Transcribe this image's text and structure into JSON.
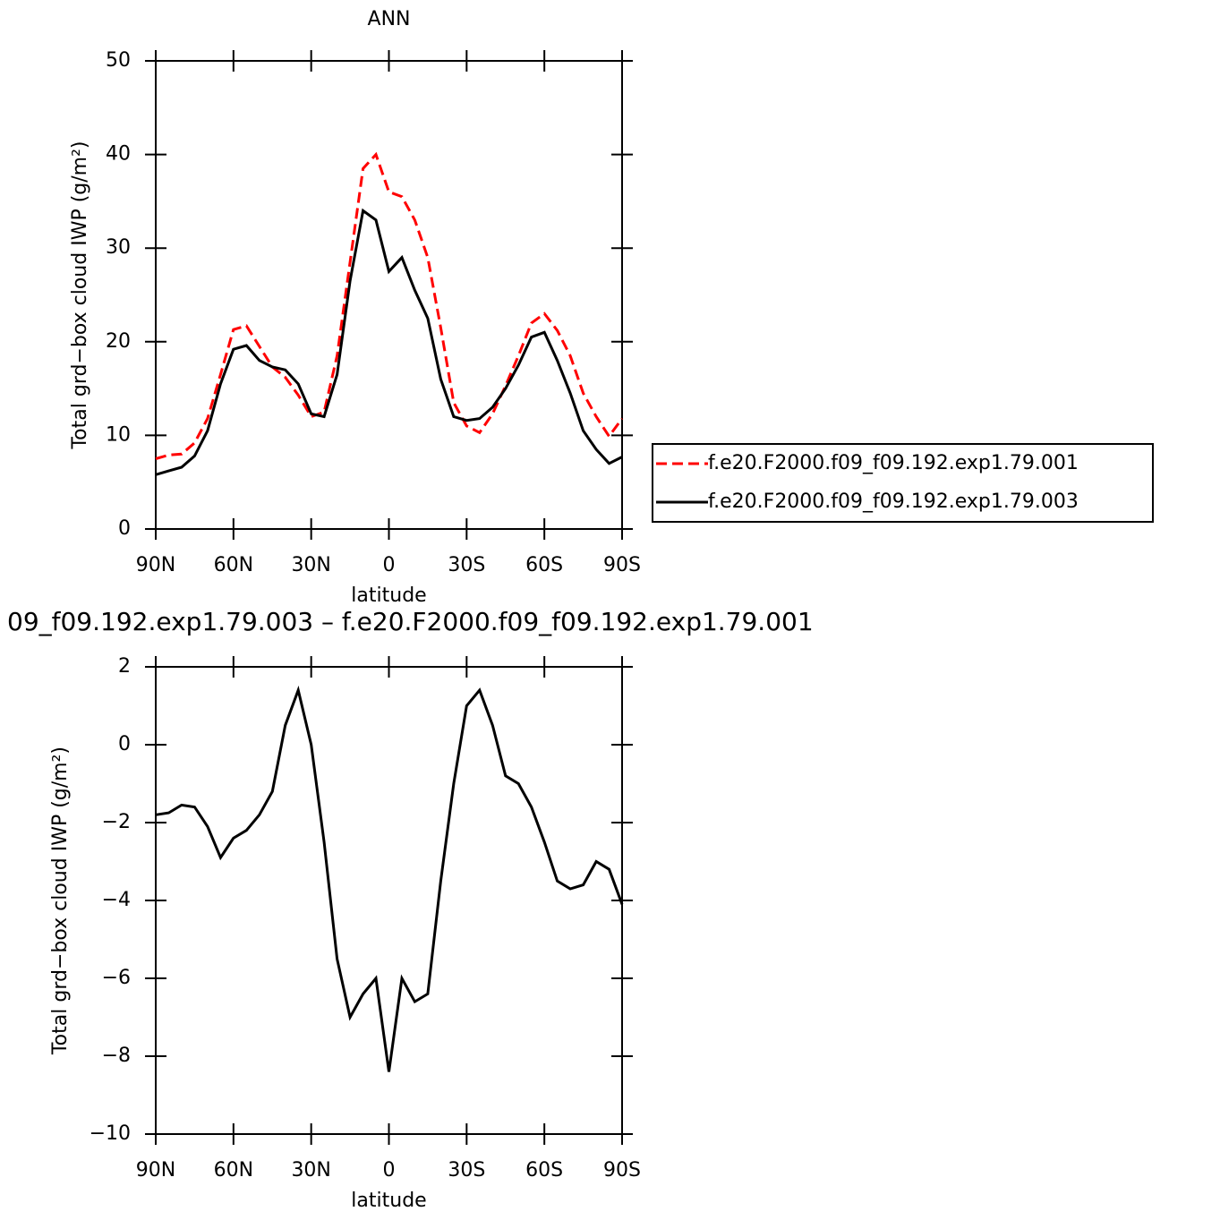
{
  "chart_data": [
    {
      "type": "line",
      "title": "ANN",
      "xlabel": "latitude",
      "ylabel": "Total grd−box cloud IWP (g/m²)",
      "x": [
        90,
        85,
        80,
        75,
        70,
        65,
        60,
        55,
        50,
        45,
        40,
        35,
        30,
        25,
        20,
        15,
        10,
        5,
        0,
        -5,
        -10,
        -15,
        -20,
        -25,
        -30,
        -35,
        -40,
        -45,
        -50,
        -55,
        -60,
        -65,
        -70,
        -75,
        -80,
        -85,
        -90
      ],
      "series": [
        {
          "name": "f.e20.F2000.f09_f09.192.exp1.79.001",
          "color": "#ff0000",
          "linestyle": "dashed",
          "values": [
            7.5,
            7.9,
            8.0,
            9.2,
            11.8,
            16.5,
            21.3,
            21.7,
            19.5,
            17.3,
            16.2,
            14.3,
            12.0,
            12.5,
            18.5,
            28.5,
            38.5,
            40,
            36.0,
            35.5,
            33,
            29,
            21.5,
            13.5,
            11.0,
            10.3,
            12.3,
            15.3,
            18.5,
            22.0,
            23.0,
            21.2,
            18.5,
            14.5,
            12.0,
            9.9,
            11.8
          ]
        },
        {
          "name": "f.e20.F2000.f09_f09.192.exp1.79.003",
          "color": "#000000",
          "linestyle": "solid",
          "values": [
            5.8,
            6.2,
            6.6,
            7.8,
            10.5,
            15.5,
            19.2,
            19.6,
            18.0,
            17.3,
            17.0,
            15.5,
            12.3,
            12.0,
            16.5,
            26.5,
            34,
            33,
            27.5,
            29.0,
            25.5,
            22.5,
            16,
            12,
            11.6,
            11.8,
            13.0,
            15.0,
            17.5,
            20.5,
            21.0,
            18.0,
            14.5,
            10.5,
            8.5,
            7.0,
            7.7
          ]
        }
      ],
      "xlim": [
        90,
        -90
      ],
      "xticks": [
        {
          "value": 90,
          "label": "90N"
        },
        {
          "value": 60,
          "label": "60N"
        },
        {
          "value": 30,
          "label": "30N"
        },
        0,
        {
          "value": -30,
          "label": "30S"
        },
        {
          "value": -60,
          "label": "60S"
        },
        {
          "value": -90,
          "label": "90S"
        }
      ],
      "ylim": [
        0,
        50
      ],
      "yticks": [
        0,
        10,
        20,
        30,
        40,
        50
      ],
      "legend": "right"
    },
    {
      "type": "line",
      "title": "09_f09.192.exp1.79.003 – f.e20.F2000.f09_f09.192.exp1.79.001",
      "xlabel": "latitude",
      "ylabel": "Total grd−box cloud IWP (g/m²)",
      "x": [
        90,
        85,
        80,
        75,
        70,
        65,
        60,
        55,
        50,
        45,
        40,
        35,
        30,
        25,
        20,
        15,
        10,
        5,
        0,
        -5,
        -10,
        -15,
        -20,
        -25,
        -30,
        -35,
        -40,
        -45,
        -50,
        -55,
        -60,
        -65,
        -70,
        -75,
        -80,
        -85,
        -90
      ],
      "values": [
        -1.8,
        -1.75,
        -1.55,
        -1.6,
        -2.1,
        -2.9,
        -2.4,
        -2.2,
        -1.8,
        -1.2,
        0.5,
        1.4,
        0.0,
        -2.5,
        -5.5,
        -7.0,
        -6.4,
        -6.0,
        -8.4,
        -6.0,
        -6.6,
        -6.4,
        -3.5,
        -1.0,
        1.0,
        1.4,
        0.5,
        -0.8,
        -1.0,
        -1.6,
        -2.5,
        -3.5,
        -3.7,
        -3.6,
        -3.0,
        -3.2,
        -4.1
      ],
      "color": "#000000",
      "xlim": [
        90,
        -90
      ],
      "xticks": [
        {
          "value": 90,
          "label": "90N"
        },
        {
          "value": 60,
          "label": "60N"
        },
        {
          "value": 30,
          "label": "30N"
        },
        0,
        {
          "value": -30,
          "label": "30S"
        },
        {
          "value": -60,
          "label": "60S"
        },
        {
          "value": -90,
          "label": "90S"
        }
      ],
      "ylim": [
        -10,
        2
      ],
      "yticks": [
        {
          "value": -10,
          "label": "−10"
        },
        {
          "value": -8,
          "label": "−8"
        },
        {
          "value": -6,
          "label": "−6"
        },
        {
          "value": -4,
          "label": "−4"
        },
        {
          "value": -2,
          "label": "−2"
        },
        0,
        2
      ]
    }
  ]
}
